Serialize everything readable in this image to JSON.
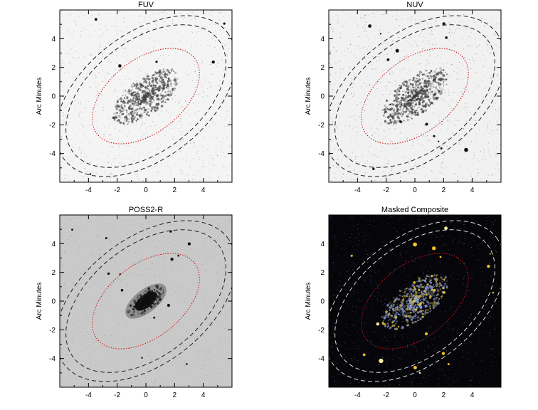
{
  "panels": [
    {
      "id": "fuv",
      "title": "FUV",
      "ylabel": "Arc Minutes",
      "xticks": [
        "-4",
        "-2",
        "0",
        "2",
        "4"
      ],
      "yticks": [
        "4",
        "2",
        "0",
        "-2",
        "-4"
      ],
      "background": "#f4f4f4",
      "noise_color": "#9a9a9a",
      "galaxy_color": "#444444",
      "inner_ellipse_color": "#d02020",
      "outer_ellipse_color": "#222222"
    },
    {
      "id": "nuv",
      "title": "NUV",
      "ylabel": "Arc Minutes",
      "xticks": [
        "-4",
        "-2",
        "0",
        "2",
        "4"
      ],
      "yticks": [
        "4",
        "2",
        "0",
        "-2",
        "-4"
      ],
      "background": "#f1f1f1",
      "noise_color": "#888888",
      "galaxy_color": "#3d3d3d",
      "inner_ellipse_color": "#d02020",
      "outer_ellipse_color": "#222222"
    },
    {
      "id": "poss2r",
      "title": "POSS2-R",
      "ylabel": "Arc Minutes",
      "xticks": [
        "-4",
        "-2",
        "0",
        "2",
        "4"
      ],
      "yticks": [
        "4",
        "2",
        "0",
        "-2",
        "-4"
      ],
      "background": "#c9c9c9",
      "noise_color": "#9e9e9e",
      "galaxy_color": "#111111",
      "inner_ellipse_color": "#d02020",
      "outer_ellipse_color": "#222222"
    },
    {
      "id": "composite",
      "title": "Masked Composite",
      "ylabel": "Arc Minutes",
      "xticks": [
        "-4",
        "-2",
        "0",
        "2",
        "4"
      ],
      "yticks": [
        "4",
        "2",
        "0",
        "-2",
        "-4"
      ],
      "background": "#05050a",
      "noise_color": "#5a5a70",
      "galaxy_color": "#8fa0d8",
      "inner_ellipse_color": "#c01818",
      "outer_ellipse_color": "#dddddd"
    }
  ],
  "axis_range_arcmin": [
    -6,
    6
  ]
}
